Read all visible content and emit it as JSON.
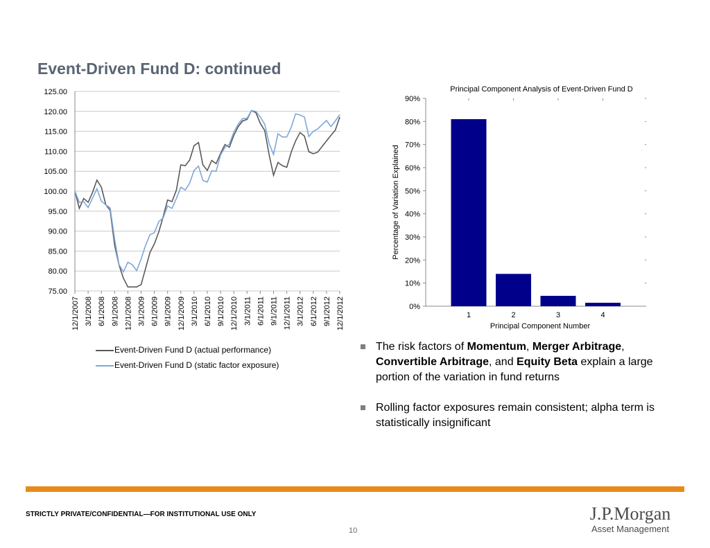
{
  "slide": {
    "title": "Event-Driven Fund D: continued",
    "confidential": "STRICTLY PRIVATE/CONFIDENTIAL—FOR INSTITUTIONAL USE ONLY",
    "page_number": "10",
    "logo": {
      "name": "J.P.Morgan",
      "subtitle": "Asset Management"
    },
    "colors": {
      "accent": "#e8891c",
      "title": "#5a6474",
      "bar": "#00008b",
      "actual": "#595959",
      "static": "#7da7d9"
    }
  },
  "bullets": [
    {
      "parts": [
        {
          "text": "The risk factors of ",
          "bold": false
        },
        {
          "text": "Momentum",
          "bold": true
        },
        {
          "text": ", ",
          "bold": false
        },
        {
          "text": "Merger Arbitrage",
          "bold": true
        },
        {
          "text": ", ",
          "bold": false
        },
        {
          "text": "Convertible Arbitrage",
          "bold": true
        },
        {
          "text": ", and ",
          "bold": false
        },
        {
          "text": "Equity Beta",
          "bold": true
        },
        {
          "text": " explain a large portion of the variation in fund returns",
          "bold": false
        }
      ]
    },
    {
      "parts": [
        {
          "text": "Rolling factor exposures remain consistent; alpha term is statistically insignificant",
          "bold": false
        }
      ]
    }
  ],
  "chart_data": [
    {
      "type": "line",
      "title": "",
      "xlabel": "",
      "ylabel": "",
      "ylim": [
        75,
        125
      ],
      "y_ticks": [
        "125.00",
        "120.00",
        "115.00",
        "110.00",
        "105.00",
        "100.00",
        "95.00",
        "90.00",
        "85.00",
        "80.00",
        "75.00"
      ],
      "x_tick_labels": [
        "12/1/2007",
        "3/1/2008",
        "6/1/2008",
        "9/1/2008",
        "12/1/2008",
        "3/1/2009",
        "6/1/2009",
        "9/1/2009",
        "12/1/2009",
        "3/1/2010",
        "6/1/2010",
        "9/1/2010",
        "12/1/2010",
        "3/1/2011",
        "6/1/2011",
        "9/1/2011",
        "12/1/2011",
        "3/1/2012",
        "6/1/2012",
        "9/1/2012",
        "12/1/2012"
      ],
      "grid": true,
      "legend_position": "bottom",
      "series": [
        {
          "name": "Event-Driven Fund D (actual performance)",
          "color": "#595959",
          "values": [
            100.0,
            95.7,
            98.2,
            97.2,
            99.7,
            102.8,
            101.0,
            96.6,
            95.2,
            86.5,
            81.5,
            78.2,
            76.0,
            76.0,
            76.0,
            76.6,
            80.6,
            84.6,
            86.8,
            89.8,
            93.6,
            97.8,
            97.4,
            100.3,
            106.6,
            106.4,
            107.8,
            111.4,
            112.2,
            106.6,
            105.2,
            107.7,
            106.9,
            109.5,
            111.7,
            111.0,
            114.0,
            116.2,
            117.6,
            118.0,
            120.2,
            119.7,
            117.0,
            115.2,
            109.2,
            104.0,
            107.2,
            106.4,
            106.0,
            109.8,
            112.6,
            114.7,
            113.8,
            109.9,
            109.4,
            109.8,
            111.2,
            112.6,
            114.0,
            115.3,
            118.6
          ]
        },
        {
          "name": "Event-Driven Fund D (static factor exposure)",
          "color": "#7da7d9",
          "values": [
            100.0,
            97.2,
            97.4,
            95.9,
            98.3,
            100.6,
            97.5,
            96.6,
            95.8,
            88.0,
            81.6,
            79.8,
            82.2,
            81.6,
            80.1,
            83.0,
            86.4,
            89.1,
            89.6,
            92.4,
            93.3,
            96.3,
            95.7,
            98.2,
            101.0,
            100.3,
            102.0,
            105.2,
            106.3,
            102.7,
            102.3,
            105.1,
            105.0,
            109.1,
            111.0,
            111.8,
            114.8,
            116.8,
            118.2,
            118.3,
            120.2,
            120.0,
            118.6,
            116.8,
            112.0,
            109.2,
            114.4,
            113.6,
            113.6,
            116.0,
            119.4,
            119.1,
            118.6,
            113.7,
            115.0,
            115.6,
            116.7,
            117.7,
            116.2,
            117.6,
            119.2
          ]
        }
      ]
    },
    {
      "type": "bar",
      "title": "Principal Component Analysis of Event-Driven Fund D",
      "xlabel": "Principal Component Number",
      "ylabel": "Percentage of Variation Explained",
      "ylim": [
        0,
        0.9
      ],
      "y_ticks": [
        "0%",
        "10%",
        "20%",
        "30%",
        "40%",
        "50%",
        "60%",
        "70%",
        "80%",
        "90%"
      ],
      "categories": [
        "1",
        "2",
        "3",
        "4"
      ],
      "values": [
        0.81,
        0.14,
        0.045,
        0.015
      ],
      "color": "#00008b",
      "grid": false
    }
  ]
}
